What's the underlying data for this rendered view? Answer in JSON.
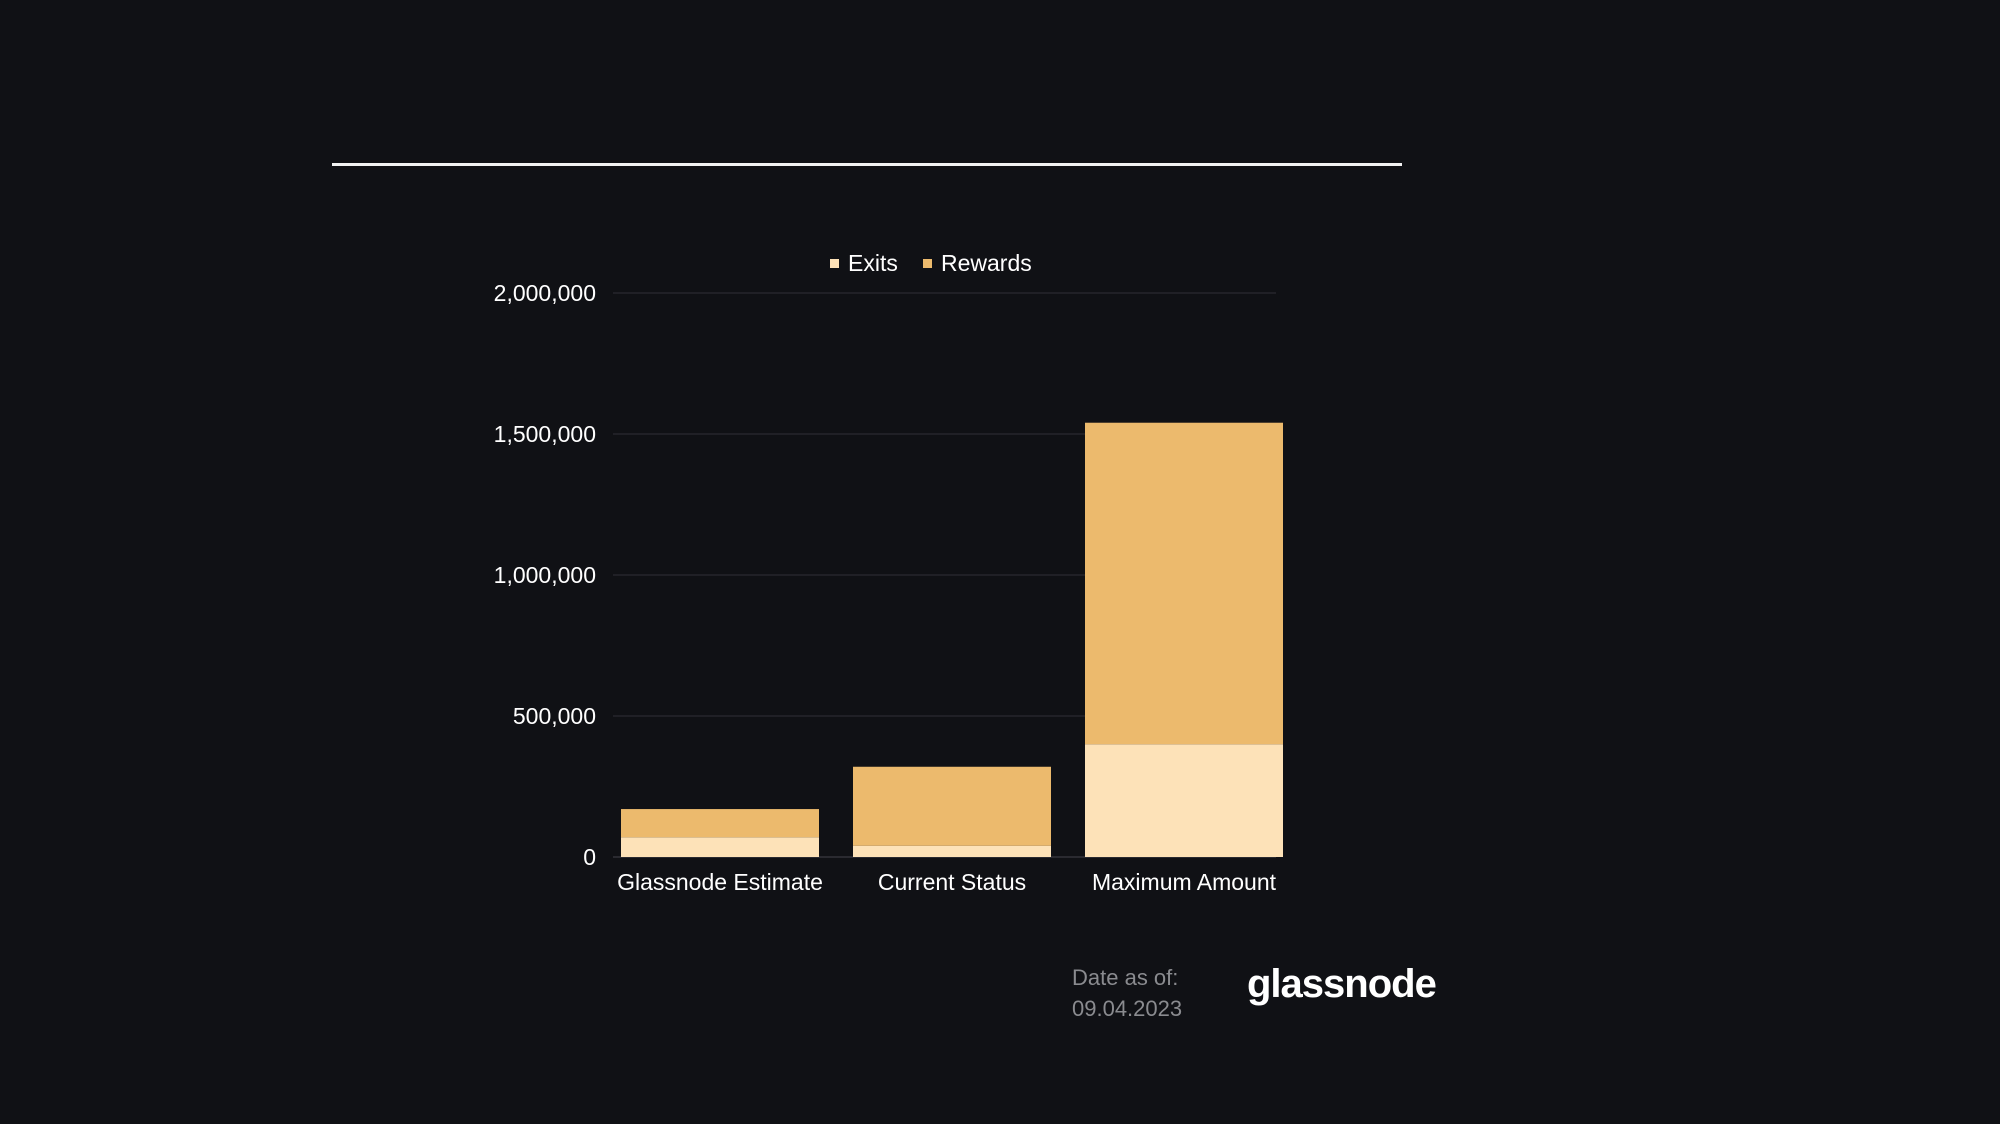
{
  "colors": {
    "background": "#101115",
    "exits": "#FDE2B8",
    "rewards": "#ECBA6D",
    "grid": "#2A2B30",
    "text": "#FFFFFF"
  },
  "chart_data": {
    "type": "bar",
    "stacked": true,
    "categories": [
      "Glassnode Estimate",
      "Current Status",
      "Maximum Amount"
    ],
    "series": [
      {
        "name": "Exits",
        "values": [
          70000,
          40000,
          400000
        ]
      },
      {
        "name": "Rewards",
        "values": [
          100000,
          280000,
          1140000
        ]
      }
    ],
    "ylim": [
      0,
      2000000
    ],
    "yticks": [
      "0",
      "500,000",
      "1,000,000",
      "1,500,000",
      "2,000,000"
    ],
    "ytick_values": [
      0,
      500000,
      1000000,
      1500000,
      2000000
    ],
    "grid": true,
    "legend_position": "top-center"
  },
  "footer": {
    "date_label": "Date as of:",
    "date_value": "09.04.2023",
    "brand": "glassnode"
  }
}
